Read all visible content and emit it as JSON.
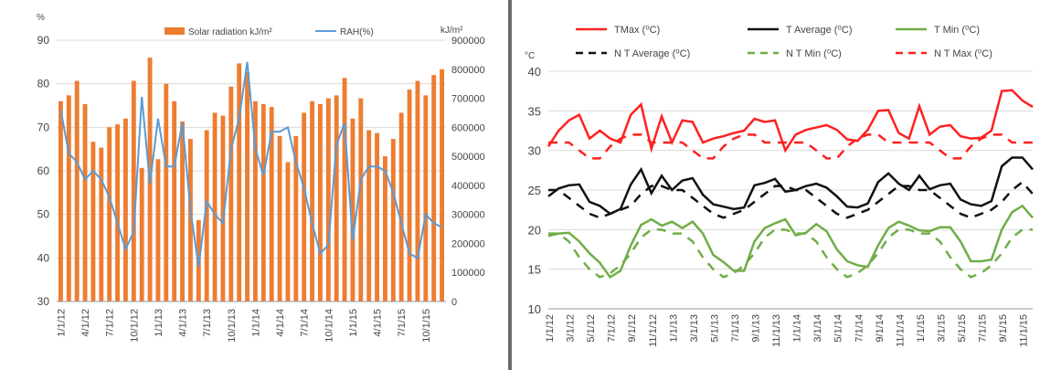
{
  "chart_data": [
    {
      "type": "bar+line",
      "title": "",
      "y_left_label": "%",
      "y_right_label": "kJ/m²",
      "y_left_range": [
        30,
        90
      ],
      "y_left_ticks": [
        30,
        40,
        50,
        60,
        70,
        80,
        90
      ],
      "y_right_range": [
        0,
        900000
      ],
      "y_right_ticks": [
        0,
        100000,
        200000,
        300000,
        400000,
        500000,
        600000,
        700000,
        800000,
        900000
      ],
      "x_tick_labels": [
        "1/1/12",
        "4/1/12",
        "7/1/12",
        "10/1/12",
        "1/1/13",
        "4/1/13",
        "7/1/13",
        "10/1/13",
        "1/1/14",
        "4/1/14",
        "7/1/14",
        "10/1/14",
        "1/1/15",
        "4/1/15",
        "7/1/15",
        "10/1/15"
      ],
      "grid": true,
      "legend_position": "top",
      "series": [
        {
          "name": "Solar radiation kJ/m²",
          "kind": "bar",
          "axis": "right",
          "color": "#ED7D31",
          "values": [
            690000,
            710000,
            760000,
            680000,
            550000,
            530000,
            600000,
            610000,
            630000,
            760000,
            460000,
            840000,
            490000,
            750000,
            690000,
            620000,
            560000,
            280000,
            590000,
            650000,
            640000,
            740000,
            820000,
            790000,
            690000,
            680000,
            670000,
            570000,
            480000,
            570000,
            650000,
            690000,
            680000,
            700000,
            710000,
            770000,
            630000,
            700000,
            590000,
            580000,
            500000,
            560000,
            650000,
            730000,
            760000,
            710000,
            780000,
            800000
          ]
        },
        {
          "name": "RAH(%)",
          "kind": "line",
          "axis": "left",
          "color": "#5B9BD5",
          "values": [
            74,
            64,
            62,
            58,
            60,
            58,
            54,
            48,
            42,
            46,
            77,
            57,
            72,
            61,
            61,
            71,
            51,
            38,
            53,
            50,
            48,
            65,
            72,
            85,
            65,
            59,
            69,
            69,
            70,
            62,
            56,
            48,
            41,
            43,
            66,
            71,
            44,
            58,
            61,
            61,
            60,
            55,
            48,
            41,
            40,
            50,
            48,
            47
          ]
        }
      ]
    },
    {
      "type": "line",
      "title": "",
      "ylabel": "°C",
      "ylim": [
        10,
        40
      ],
      "y_ticks": [
        10,
        15,
        20,
        25,
        30,
        35,
        40
      ],
      "x_tick_labels": [
        "1/1/12",
        "3/1/12",
        "5/1/12",
        "7/1/12",
        "9/1/12",
        "11/1/12",
        "1/1/13",
        "3/1/13",
        "5/1/13",
        "7/1/13",
        "9/1/13",
        "11/1/13",
        "1/1/14",
        "3/1/14",
        "5/1/14",
        "7/1/14",
        "9/1/14",
        "11/1/14",
        "1/1/15",
        "3/1/15",
        "5/1/15",
        "7/1/15",
        "9/1/15",
        "11/1/15"
      ],
      "grid": true,
      "legend_position": "top",
      "series": [
        {
          "name": "TMax (⁰C)",
          "color": "#FF2020",
          "dash": false,
          "values": [
            30.5,
            32.5,
            33.8,
            34.5,
            31.5,
            32.5,
            31.5,
            31.0,
            34.5,
            35.8,
            30.2,
            34.3,
            31.0,
            33.8,
            33.6,
            31.0,
            31.5,
            31.8,
            32.2,
            32.5,
            34.0,
            33.6,
            33.8,
            30.0,
            32.0,
            32.6,
            32.9,
            33.2,
            32.6,
            31.4,
            31.2,
            32.6,
            35.0,
            35.1,
            32.2,
            31.5,
            35.6,
            32.0,
            33.0,
            33.2,
            31.8,
            31.5,
            31.6,
            32.5,
            37.5,
            37.6,
            36.3,
            35.5
          ]
        },
        {
          "name": "T Average (⁰C)",
          "color": "#111111",
          "dash": false,
          "values": [
            24.2,
            25.2,
            25.6,
            25.7,
            23.5,
            23.0,
            22.0,
            22.6,
            25.7,
            27.6,
            24.6,
            26.8,
            25.0,
            26.2,
            26.5,
            24.4,
            23.2,
            22.9,
            22.6,
            22.8,
            25.6,
            25.9,
            26.4,
            24.8,
            25.0,
            25.5,
            25.8,
            25.3,
            24.2,
            22.9,
            22.8,
            23.3,
            26.0,
            27.1,
            25.8,
            25.0,
            26.8,
            25.1,
            25.6,
            25.8,
            23.8,
            23.2,
            23.0,
            23.6,
            28.0,
            29.1,
            29.1,
            27.6
          ]
        },
        {
          "name": "T Min (⁰C)",
          "color": "#70AD47",
          "dash": false,
          "values": [
            19.2,
            19.5,
            19.6,
            18.5,
            17.0,
            15.8,
            14.0,
            14.8,
            18.0,
            20.6,
            21.3,
            20.5,
            21.0,
            20.2,
            21.0,
            19.5,
            16.8,
            15.9,
            14.8,
            14.8,
            18.5,
            20.2,
            20.8,
            21.3,
            19.3,
            19.6,
            20.7,
            19.8,
            17.5,
            16.0,
            15.5,
            15.3,
            18.0,
            20.2,
            21.0,
            20.5,
            19.9,
            19.8,
            20.3,
            20.3,
            18.5,
            16.0,
            16.0,
            16.2,
            20.0,
            22.2,
            23.0,
            21.5
          ]
        },
        {
          "name": "N T Average (⁰C)",
          "color": "#111111",
          "dash": true,
          "values": [
            25.0,
            25.0,
            24.0,
            23.0,
            22.0,
            21.5,
            22.0,
            22.5,
            23.0,
            24.5,
            25.5,
            25.5,
            25.0,
            25.0,
            24.0,
            23.0,
            22.0,
            21.5,
            22.0,
            22.5,
            23.5,
            24.5,
            25.5,
            25.5,
            25.0,
            25.0,
            24.0,
            23.0,
            22.0,
            21.5,
            22.0,
            22.5,
            23.5,
            24.5,
            25.5,
            25.5,
            25.0,
            25.0,
            24.0,
            23.0,
            22.0,
            21.5,
            22.0,
            22.5,
            23.5,
            25.0,
            26.0,
            24.5
          ]
        },
        {
          "name": "N T Min (⁰C)",
          "color": "#70AD47",
          "dash": true,
          "values": [
            19.5,
            19.5,
            18.5,
            16.5,
            15.0,
            14.0,
            14.5,
            15.5,
            17.0,
            19.0,
            20.0,
            20.0,
            19.5,
            19.5,
            18.5,
            16.5,
            15.0,
            14.0,
            14.5,
            15.5,
            17.0,
            19.0,
            20.0,
            20.0,
            19.5,
            19.5,
            18.5,
            16.5,
            15.0,
            14.0,
            14.5,
            15.5,
            17.0,
            19.0,
            20.0,
            20.0,
            19.5,
            19.5,
            18.5,
            16.5,
            15.0,
            14.0,
            14.5,
            15.5,
            17.0,
            19.0,
            20.0,
            20.0
          ]
        },
        {
          "name": "N T Max (⁰C)",
          "color": "#FF2020",
          "dash": true,
          "values": [
            31.0,
            31.0,
            31.0,
            30.0,
            29.0,
            29.0,
            30.5,
            31.5,
            32.0,
            32.0,
            31.0,
            31.0,
            31.0,
            31.0,
            30.0,
            29.0,
            29.0,
            30.5,
            31.5,
            32.0,
            32.0,
            31.0,
            31.0,
            31.0,
            31.0,
            31.0,
            30.0,
            29.0,
            29.0,
            30.5,
            31.5,
            32.0,
            32.0,
            31.0,
            31.0,
            31.0,
            31.0,
            31.0,
            30.0,
            29.0,
            29.0,
            30.5,
            31.5,
            32.0,
            32.0,
            31.0,
            31.0,
            31.0
          ]
        }
      ]
    }
  ]
}
